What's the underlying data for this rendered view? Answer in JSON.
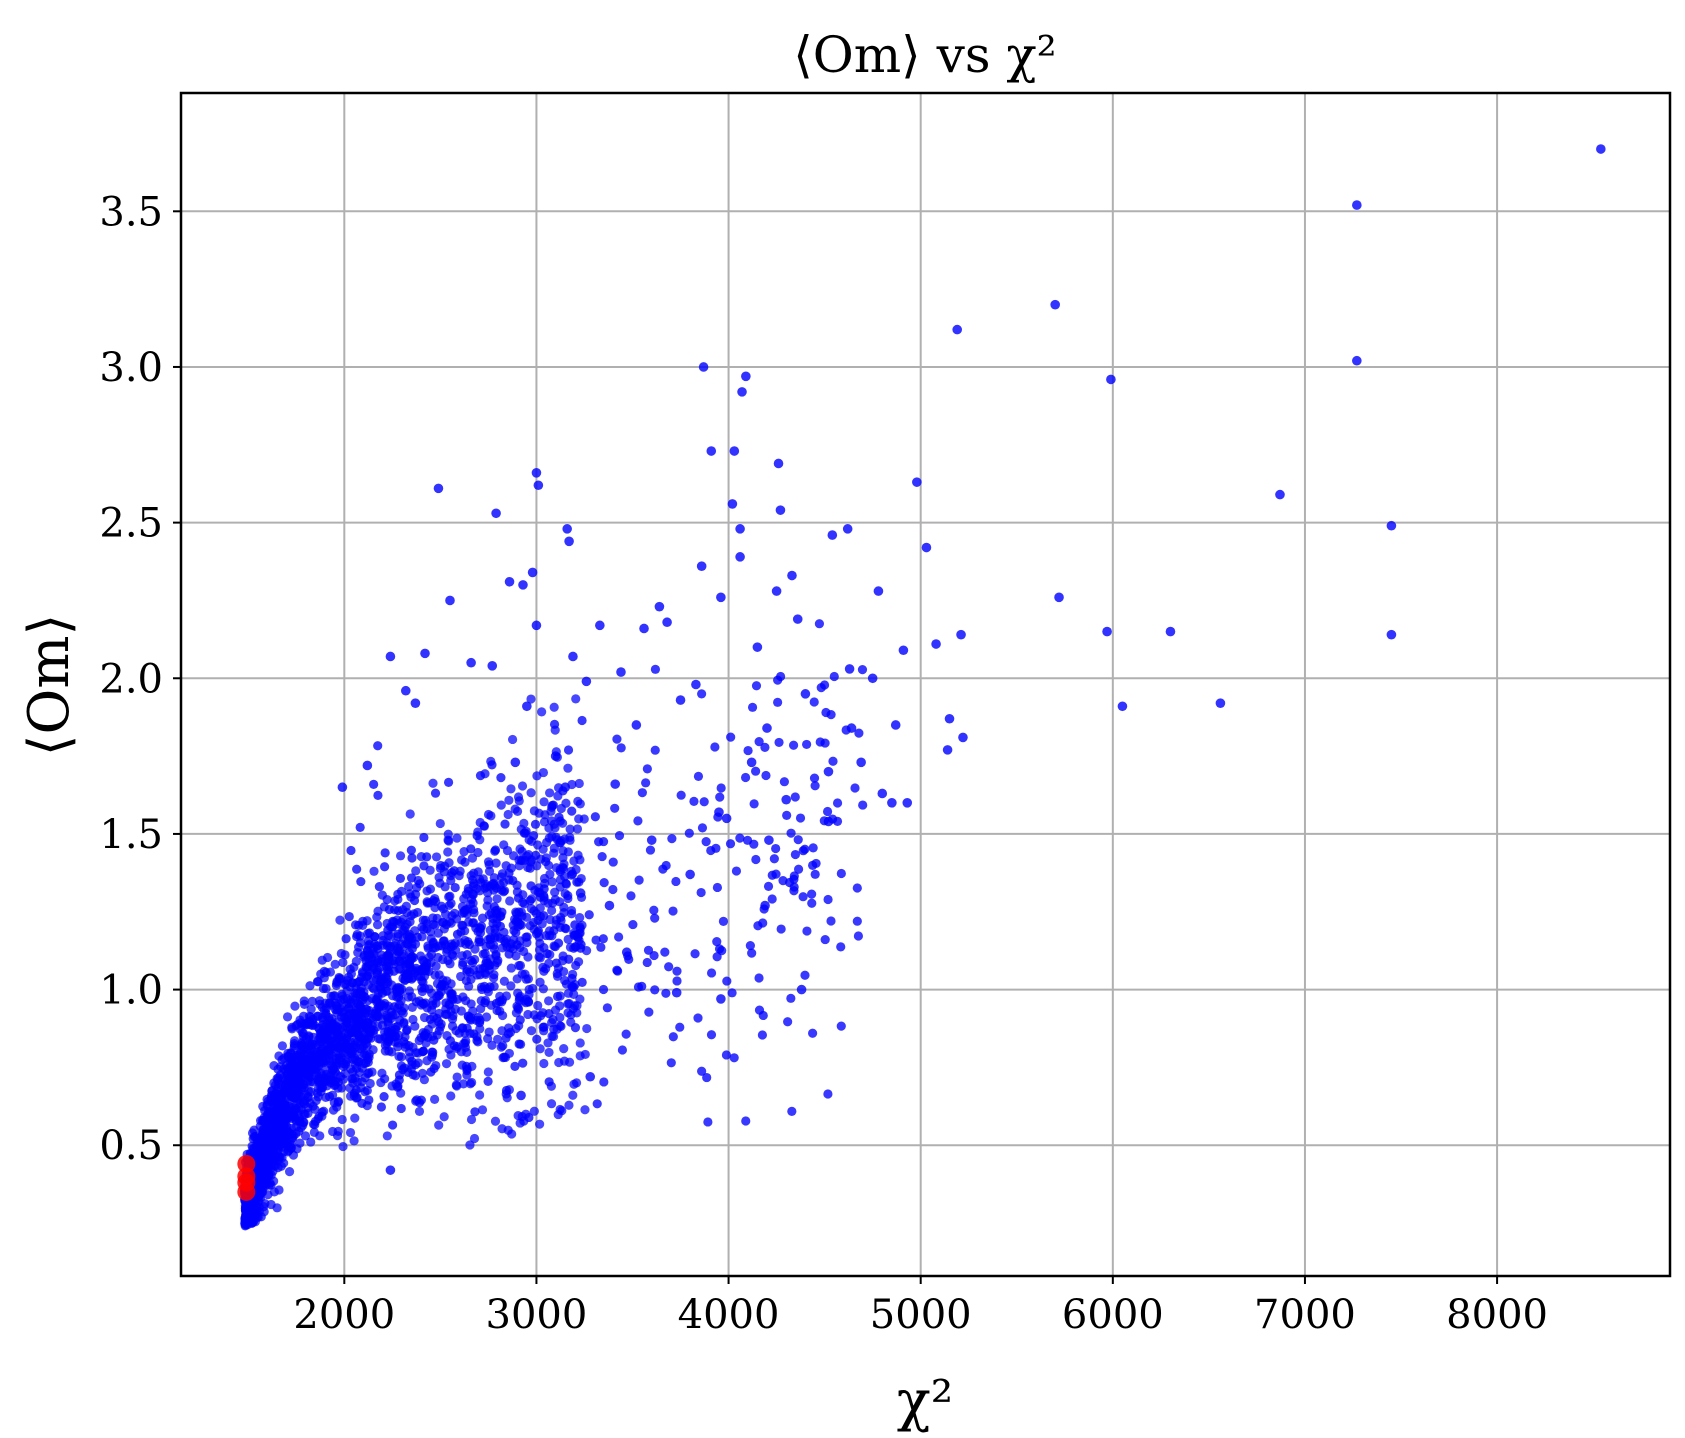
{
  "chart_data": {
    "type": "scatter",
    "title": "⟨Om⟩ vs χ²",
    "xlabel": "χ²",
    "ylabel": "⟨Om⟩",
    "xlim": [
      1150,
      8900
    ],
    "ylim": [
      0.08,
      3.88
    ],
    "xticks": [
      2000,
      3000,
      4000,
      5000,
      6000,
      7000,
      8000
    ],
    "yticks": [
      0.5,
      1.0,
      1.5,
      2.0,
      2.5,
      3.0,
      3.5
    ],
    "xtick_labels": [
      "2000",
      "3000",
      "4000",
      "5000",
      "6000",
      "7000",
      "8000"
    ],
    "ytick_labels": [
      "0.5",
      "1.0",
      "1.5",
      "2.0",
      "2.5",
      "3.0",
      "3.5"
    ],
    "grid": true,
    "series": [
      {
        "color": "#0000ff",
        "dense_cloud": "main cluster ~1500–3000 χ², ⟨Om⟩ 0.25–1.9",
        "outliers": [
          [
            8540,
            3.7
          ],
          [
            7270,
            3.52
          ],
          [
            7270,
            3.02
          ],
          [
            7450,
            2.49
          ],
          [
            7450,
            2.14
          ],
          [
            6870,
            2.59
          ],
          [
            6300,
            2.15
          ],
          [
            6560,
            1.92
          ],
          [
            5700,
            3.2
          ],
          [
            5720,
            2.26
          ],
          [
            5990,
            2.96
          ],
          [
            5970,
            2.15
          ],
          [
            6050,
            1.91
          ],
          [
            5190,
            3.12
          ],
          [
            5210,
            2.14
          ],
          [
            5220,
            1.81
          ],
          [
            5150,
            1.87
          ],
          [
            5140,
            1.77
          ],
          [
            4980,
            2.63
          ],
          [
            5030,
            2.42
          ],
          [
            5080,
            2.11
          ],
          [
            4910,
            2.09
          ],
          [
            4870,
            1.85
          ],
          [
            4930,
            1.6
          ],
          [
            4850,
            1.6
          ],
          [
            4800,
            1.63
          ],
          [
            4780,
            2.28
          ],
          [
            4750,
            2.0
          ],
          [
            4690,
            1.73
          ],
          [
            4620,
            2.48
          ],
          [
            4540,
            2.46
          ],
          [
            4520,
            1.54
          ],
          [
            4630,
            2.03
          ],
          [
            4640,
            1.84
          ],
          [
            4520,
            1.7
          ],
          [
            4400,
            1.95
          ],
          [
            4380,
            1.0
          ],
          [
            4360,
            2.19
          ],
          [
            4330,
            2.33
          ],
          [
            4300,
            1.61
          ],
          [
            4270,
            2.54
          ],
          [
            4260,
            2.69
          ],
          [
            4250,
            2.28
          ],
          [
            4200,
            1.84
          ],
          [
            4190,
            1.27
          ],
          [
            4210,
            1.48
          ],
          [
            4150,
            2.1
          ],
          [
            4120,
            1.73
          ],
          [
            4090,
            2.97
          ],
          [
            4070,
            2.92
          ],
          [
            4060,
            2.48
          ],
          [
            4060,
            2.39
          ],
          [
            4030,
            2.73
          ],
          [
            4020,
            2.56
          ],
          [
            3990,
            1.55
          ],
          [
            3960,
            0.97
          ],
          [
            3960,
            2.26
          ],
          [
            3950,
            1.57
          ],
          [
            3910,
            2.73
          ],
          [
            3870,
            3.0
          ],
          [
            3860,
            2.36
          ],
          [
            3830,
            1.98
          ],
          [
            3800,
            1.37
          ],
          [
            3750,
            1.93
          ],
          [
            3730,
            0.99
          ],
          [
            3680,
            2.18
          ],
          [
            3640,
            2.23
          ],
          [
            3600,
            1.48
          ],
          [
            3560,
            2.16
          ],
          [
            3520,
            1.85
          ],
          [
            3470,
            1.12
          ],
          [
            3440,
            2.02
          ],
          [
            3410,
            1.66
          ],
          [
            3380,
            1.27
          ],
          [
            3330,
            2.17
          ],
          [
            3280,
            0.72
          ],
          [
            3260,
            1.99
          ],
          [
            3230,
            1.31
          ],
          [
            3190,
            2.07
          ],
          [
            3170,
            2.44
          ],
          [
            3160,
            2.48
          ],
          [
            3150,
            1.65
          ],
          [
            3100,
            1.75
          ],
          [
            3010,
            2.62
          ],
          [
            3000,
            2.66
          ],
          [
            3000,
            2.17
          ],
          [
            2980,
            2.34
          ],
          [
            2950,
            1.91
          ],
          [
            2930,
            2.3
          ],
          [
            2920,
            0.66
          ],
          [
            2890,
            1.73
          ],
          [
            2860,
            2.31
          ],
          [
            2790,
            2.53
          ],
          [
            2770,
            2.04
          ],
          [
            2660,
            2.05
          ],
          [
            2550,
            2.25
          ],
          [
            2490,
            2.61
          ],
          [
            2420,
            2.08
          ],
          [
            2370,
            1.92
          ],
          [
            2320,
            1.96
          ],
          [
            2240,
            2.07
          ],
          [
            2240,
            0.42
          ],
          [
            2120,
            1.72
          ],
          [
            1990,
            1.65
          ]
        ],
        "cluster_centerline": [
          [
            1480,
            0.3
          ],
          [
            1550,
            0.42
          ],
          [
            1650,
            0.58
          ],
          [
            1800,
            0.75
          ],
          [
            2000,
            0.88
          ],
          [
            2200,
            0.98
          ],
          [
            2400,
            1.05
          ],
          [
            2600,
            1.1
          ],
          [
            2800,
            1.14
          ],
          [
            3000,
            1.18
          ],
          [
            3200,
            1.22
          ]
        ]
      },
      {
        "color": "#ff0000",
        "points": [
          [
            1490,
            0.35
          ],
          [
            1490,
            0.38
          ],
          [
            1490,
            0.4
          ],
          [
            1490,
            0.44
          ]
        ]
      }
    ]
  }
}
